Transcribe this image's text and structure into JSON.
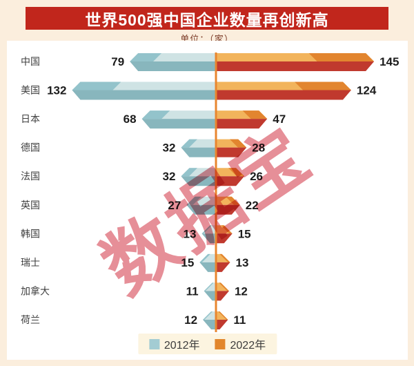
{
  "title": "世界500强中国企业数量再创新高",
  "unit_label": "单位：（家）",
  "watermark": "数据宝",
  "legend": [
    {
      "label": "2012年",
      "swatch_style": "background:#a3ccd3"
    },
    {
      "label": "2022年",
      "swatch_style": "background:#e2862c"
    }
  ],
  "colors": {
    "banner_bg": "#c1261c",
    "banner_text": "#ffffff",
    "page_bg": "#fbeedd",
    "panel_bg": "#ffffff",
    "unit_text": "#7b3a26",
    "axis_line": "#e8862f",
    "teal_top_light": "#cfe3e4",
    "teal_top_dark": "#93c3cb",
    "teal_front": "#88b6bd",
    "orange_top_light": "#f2b45c",
    "orange_top_dark": "#e2852f",
    "red_front": "#c0392e",
    "category_text": "#3f3f3f",
    "value_text": "#1c1c1c",
    "watermark_color": "#e0737e"
  },
  "chart_data": {
    "type": "bar",
    "orientation": "diverging-horizontal",
    "title": "世界500强中国企业数量再创新高",
    "unit": "单位：（家）",
    "categories": [
      "中国",
      "美国",
      "日本",
      "德国",
      "法国",
      "英国",
      "韩国",
      "瑞士",
      "加拿大",
      "荷兰"
    ],
    "series": [
      {
        "name": "2012年",
        "values": [
          79,
          132,
          68,
          32,
          32,
          27,
          13,
          15,
          11,
          12
        ]
      },
      {
        "name": "2022年",
        "values": [
          145,
          124,
          47,
          28,
          26,
          22,
          15,
          13,
          12,
          11
        ]
      }
    ],
    "value_axis_max": 145,
    "grid": false,
    "legend_position": "bottom"
  }
}
